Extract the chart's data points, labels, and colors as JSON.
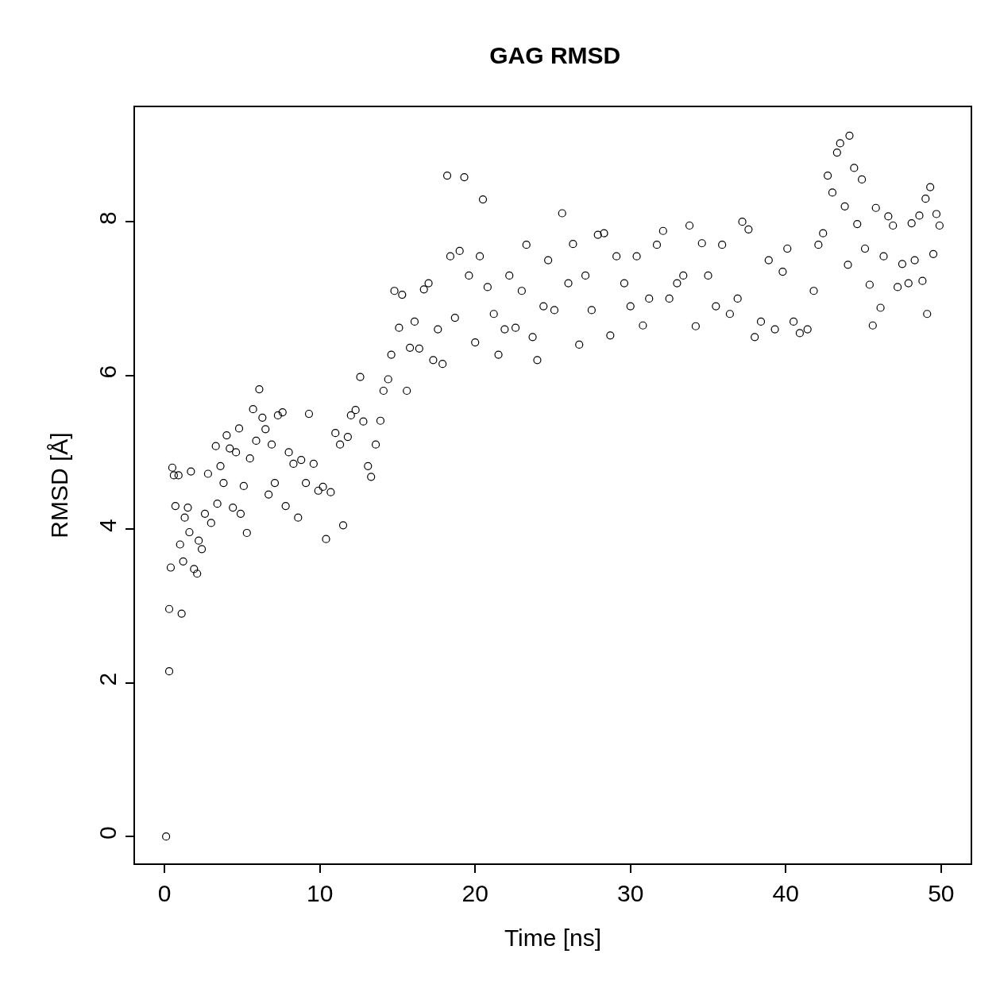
{
  "chart_data": {
    "type": "scatter",
    "title": "GAG RMSD",
    "xlabel": "Time [ns]",
    "ylabel": "RMSD [Å]",
    "xlim": [
      -1.9,
      51.9
    ],
    "xticks": [
      0,
      10,
      20,
      30,
      40,
      50
    ],
    "ylim": [
      -0.35,
      9.49
    ],
    "yticks": [
      0,
      2,
      4,
      6,
      8
    ],
    "marker": "circle",
    "x": [
      0.1,
      0.3,
      0.3,
      0.4,
      0.5,
      0.6,
      0.7,
      0.9,
      1.0,
      1.1,
      1.2,
      1.3,
      1.5,
      1.6,
      1.7,
      1.9,
      2.1,
      2.2,
      2.4,
      2.6,
      2.8,
      3.0,
      3.3,
      3.4,
      3.6,
      3.8,
      4.0,
      4.2,
      4.4,
      4.6,
      4.8,
      4.9,
      5.1,
      5.3,
      5.5,
      5.7,
      5.9,
      6.1,
      6.3,
      6.5,
      6.7,
      6.9,
      7.1,
      7.3,
      7.6,
      7.8,
      8.0,
      8.3,
      8.6,
      8.8,
      9.1,
      9.3,
      9.6,
      9.9,
      10.2,
      10.4,
      10.7,
      11.0,
      11.3,
      11.5,
      11.8,
      12.0,
      12.3,
      12.6,
      12.8,
      13.1,
      13.3,
      13.6,
      13.9,
      14.1,
      14.4,
      14.6,
      14.8,
      15.1,
      15.3,
      15.6,
      15.8,
      16.1,
      16.4,
      16.7,
      17.0,
      17.3,
      17.6,
      17.9,
      18.2,
      18.4,
      18.7,
      19.0,
      19.3,
      19.6,
      20.0,
      20.3,
      20.5,
      20.8,
      21.2,
      21.5,
      21.9,
      22.2,
      22.6,
      23.0,
      23.3,
      23.7,
      24.0,
      24.4,
      24.7,
      25.1,
      25.6,
      26.0,
      26.3,
      26.7,
      27.1,
      27.5,
      27.9,
      28.3,
      28.7,
      29.1,
      29.6,
      30.0,
      30.4,
      30.8,
      31.2,
      31.7,
      32.1,
      32.5,
      33.0,
      33.4,
      33.8,
      34.2,
      34.6,
      35.0,
      35.5,
      35.9,
      36.4,
      36.9,
      37.2,
      37.6,
      38.0,
      38.4,
      38.9,
      39.3,
      39.8,
      40.1,
      40.5,
      40.9,
      41.4,
      41.8,
      42.1,
      42.4,
      42.7,
      43.0,
      43.3,
      43.5,
      43.8,
      44.0,
      44.1,
      44.4,
      44.6,
      44.9,
      45.1,
      45.4,
      45.6,
      45.8,
      46.1,
      46.3,
      46.6,
      46.9,
      47.2,
      47.5,
      47.9,
      48.1,
      48.3,
      48.6,
      48.8,
      49.0,
      49.1,
      49.3,
      49.5,
      49.7,
      49.9
    ],
    "series": [
      {
        "color": "#000000",
        "values": [
          0,
          2.15,
          2.96,
          3.5,
          4.8,
          4.7,
          4.3,
          4.7,
          3.8,
          2.9,
          3.58,
          4.15,
          4.28,
          3.96,
          4.75,
          3.48,
          3.42,
          3.85,
          3.74,
          4.2,
          4.72,
          4.08,
          5.08,
          4.33,
          4.82,
          4.6,
          5.22,
          5.05,
          4.28,
          5.0,
          5.31,
          4.2,
          4.56,
          3.95,
          4.92,
          5.56,
          5.15,
          5.82,
          5.45,
          5.3,
          4.45,
          5.1,
          4.6,
          5.48,
          5.52,
          4.3,
          5.0,
          4.85,
          4.15,
          4.9,
          4.6,
          5.5,
          4.85,
          4.5,
          4.55,
          3.87,
          4.48,
          5.25,
          5.1,
          4.05,
          5.2,
          5.48,
          5.55,
          5.98,
          5.4,
          4.82,
          4.68,
          5.1,
          5.41,
          5.8,
          5.95,
          6.27,
          7.1,
          6.62,
          7.05,
          5.8,
          6.36,
          6.7,
          6.35,
          7.12,
          7.2,
          6.2,
          6.6,
          6.15,
          8.6,
          7.55,
          6.75,
          7.62,
          8.58,
          7.3,
          6.43,
          7.55,
          8.29,
          7.15,
          6.8,
          6.27,
          6.6,
          7.3,
          6.62,
          7.1,
          7.7,
          6.5,
          6.2,
          6.9,
          7.5,
          6.85,
          8.11,
          7.2,
          7.71,
          6.4,
          7.3,
          6.85,
          7.83,
          7.85,
          6.52,
          7.55,
          7.2,
          6.9,
          7.55,
          6.65,
          7.0,
          7.7,
          7.88,
          7.0,
          7.2,
          7.3,
          7.95,
          6.64,
          7.72,
          7.3,
          6.9,
          7.7,
          6.8,
          7.0,
          8.0,
          7.9,
          6.5,
          6.7,
          7.5,
          6.6,
          7.35,
          7.65,
          6.7,
          6.55,
          6.6,
          7.1,
          7.7,
          7.85,
          8.6,
          8.38,
          8.9,
          9.02,
          8.2,
          7.44,
          9.12,
          8.7,
          7.97,
          8.55,
          7.65,
          7.18,
          6.65,
          8.18,
          6.88,
          7.55,
          8.07,
          7.95,
          7.15,
          7.45,
          7.2,
          7.98,
          7.5,
          8.08,
          7.23,
          8.3,
          6.8,
          8.45,
          7.58,
          8.1,
          7.95
        ]
      }
    ]
  }
}
